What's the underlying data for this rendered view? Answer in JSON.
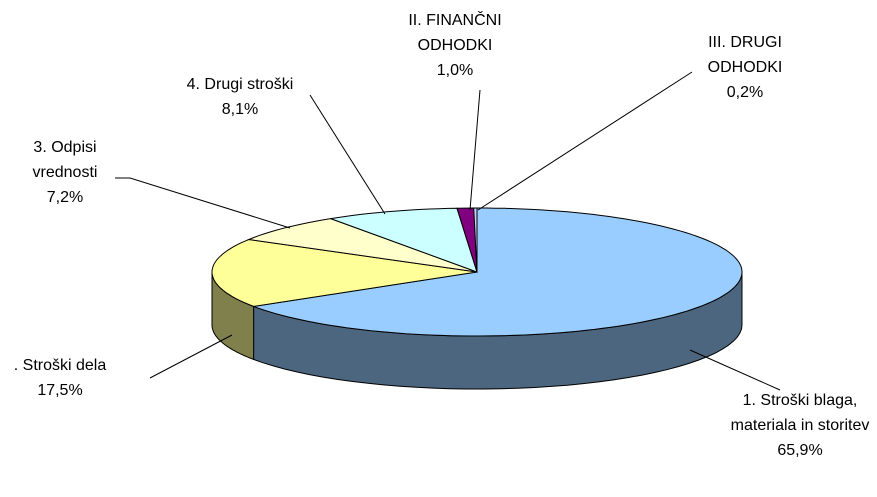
{
  "chart_data": {
    "type": "pie",
    "categories": [
      "1. Stroški blaga, materiala in storitev",
      ". Stroški dela",
      "3. Odpisi vrednosti",
      "4. Drugi stroški",
      "II. FINANČNI ODHODKI",
      "III. DRUGI ODHODKI"
    ],
    "values": [
      65.9,
      17.5,
      7.2,
      8.1,
      1.0,
      0.2
    ],
    "value_labels": [
      "65,9%",
      "17,5%",
      "7,2%",
      "8,1%",
      "1,0%",
      "0,2%"
    ],
    "colors": [
      "#99ccff",
      "#ffff99",
      "#ffffcc",
      "#ccffff",
      "#800080",
      "#ccccff"
    ]
  }
}
